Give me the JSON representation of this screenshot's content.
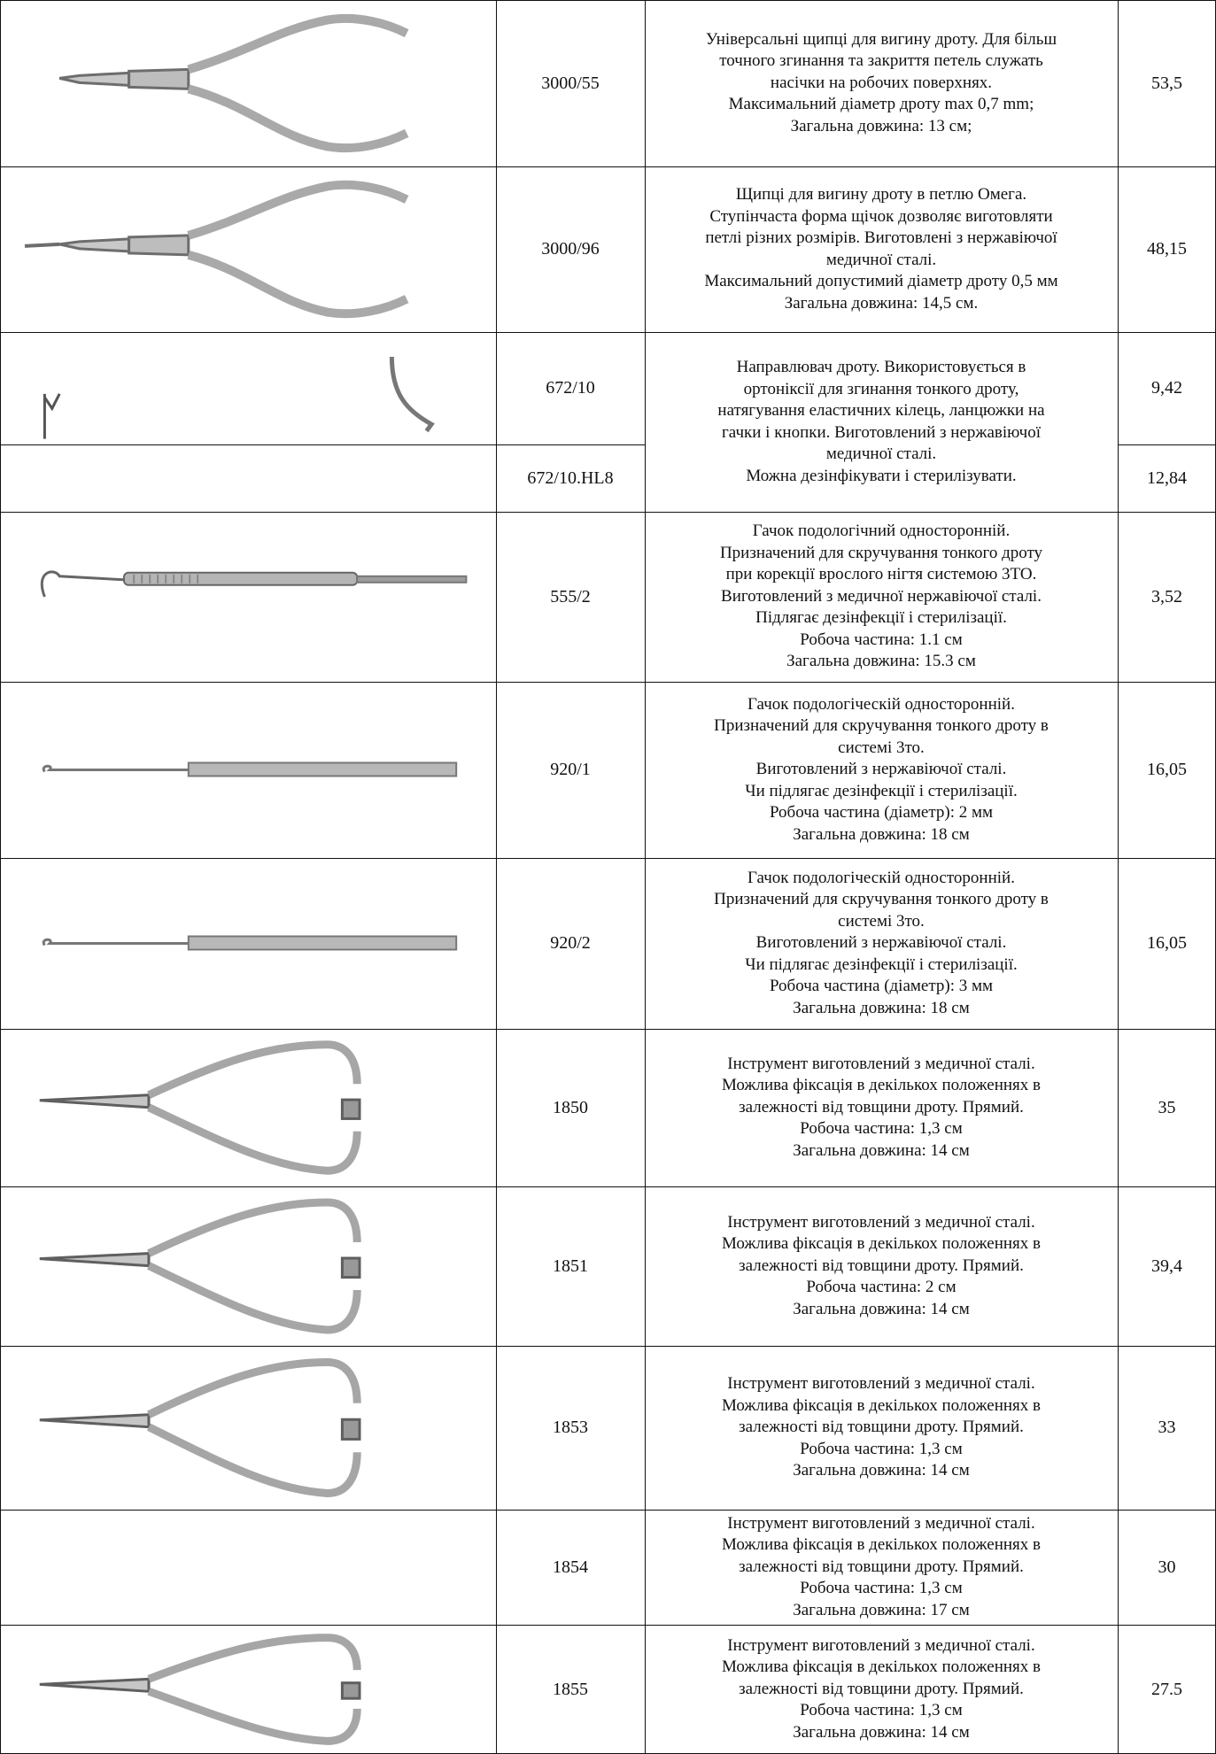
{
  "rows": [
    {
      "image": "pliers-loop-forming-icon",
      "code": "3000/55",
      "description": [
        "Універсальні щипці для вигину дроту. Для більш",
        "точного згинання та закриття петель служать",
        "насічки на робочих поверхнях.",
        "Максимальний діаметр дроту max 0,7 mm;",
        "Загальна довжина: 13 см;"
      ],
      "price": "53,5"
    },
    {
      "image": "pliers-omega-loop-icon",
      "code": "3000/96",
      "description": [
        "Щипці для вигину дроту в петлю Омега.",
        "Ступінчаста форма щічок дозволяє виготовляти",
        "петлі різних розмірів. Виготовлені з нержавіючої",
        "медичної сталі.",
        "Максимальний допустимий діаметр дроту 0,5 мм",
        "Загальна довжина: 14,5 см."
      ],
      "price": "48,15"
    },
    {
      "image": "wire-guide-icon",
      "code": "672/10",
      "description": [
        "Направлювач дроту. Використовується в",
        "ортоніксії для згинання тонкого дроту,",
        "натягування еластичних кілець, ланцюжки на",
        "гачки і кнопки. Виготовлений з нержавіючої",
        "медичної сталі.",
        "Можна дезінфікувати і стерилізувати."
      ],
      "price": "9,42"
    },
    {
      "image": "",
      "code": "672/10.HL8",
      "description": [],
      "price": "12,84"
    },
    {
      "image": "podology-hook-handle-icon",
      "code": "555/2",
      "description": [
        "Гачок подологічний односторонній.",
        "Призначений для скручування тонкого дроту",
        "при корекції врослого нігтя системою 3ТО.",
        "Виготовлений з медичної нержавіючої сталі.",
        "Підлягає дезінфекції і стерилізації.",
        "Робоча частина: 1.1 см",
        "Загальна довжина: 15.3 см"
      ],
      "price": "3,52"
    },
    {
      "image": "podology-hook-flat-icon",
      "code": "920/1",
      "description": [
        "Гачок подологіческій односторонній.",
        "Призначений для скручування тонкого дроту в",
        "системі 3то.",
        "Виготовлений з нержавіючої сталі.",
        "Чи підлягає дезінфекції і стерилізації.",
        "Робоча частина (діаметр): 2 мм",
        "Загальна довжина: 18 см"
      ],
      "price": "16,05"
    },
    {
      "image": "podology-hook-flat-icon",
      "code": "920/2",
      "description": [
        "Гачок подологіческій односторонній.",
        "Призначений для скручування тонкого дроту в",
        "системі 3то.",
        "Виготовлений з нержавіючої сталі.",
        "Чи підлягає дезінфекції і стерилізації.",
        "Робоча частина (діаметр): 3 мм",
        "Загальна довжина: 18 см"
      ],
      "price": "16,05"
    },
    {
      "image": "mathieu-needle-holder-icon",
      "code": "1850",
      "description": [
        "Інструмент виготовлений з медичної сталі.",
        "Можлива фіксація в декількох положеннях в",
        "залежності від товщини дроту. Прямий.",
        "Робоча частина: 1,3 см",
        "Загальна довжина: 14 см"
      ],
      "price": "35"
    },
    {
      "image": "mathieu-needle-holder-icon",
      "code": "1851",
      "description": [
        "Інструмент виготовлений з медичної сталі.",
        "Можлива фіксація в декількох положеннях в",
        "залежності від товщини дроту. Прямий.",
        "Робоча частина: 2 см",
        "Загальна довжина: 14 см"
      ],
      "price": "39,4"
    },
    {
      "image": "mathieu-needle-holder-icon",
      "code": "1853",
      "description": [
        "Інструмент виготовлений з медичної сталі.",
        "Можлива фіксація в декількох положеннях в",
        "залежності від товщини дроту. Прямий.",
        "Робоча частина: 1,3 см",
        "Загальна довжина: 14 см"
      ],
      "price": "33"
    },
    {
      "image": "",
      "code": "1854",
      "description": [
        "Інструмент виготовлений з медичної сталі.",
        "Можлива фіксація в декількох положеннях в",
        "залежності від товщини дроту. Прямий.",
        "Робоча частина: 1,3 см",
        "Загальна довжина: 17 см"
      ],
      "price": "30"
    },
    {
      "image": "mathieu-needle-holder-icon",
      "code": "1855",
      "description": [
        "Інструмент виготовлений з медичної сталі.",
        "Можлива фіксація в декількох положеннях в",
        "залежності від товщини дроту. Прямий.",
        "Робоча частина: 1,3 см",
        "Загальна довжина: 14 см"
      ],
      "price": "27.5"
    }
  ]
}
